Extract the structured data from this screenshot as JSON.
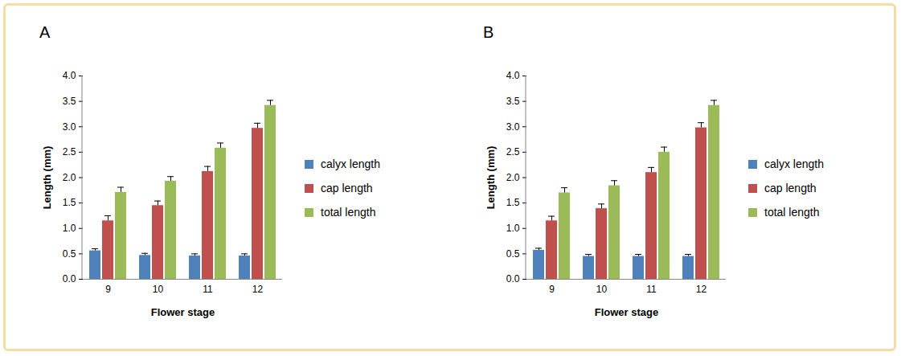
{
  "chart_data": [
    {
      "type": "bar",
      "title": "A",
      "x_label": "Flower stage",
      "y_label": "Length (mm)",
      "categories": [
        "9",
        "10",
        "11",
        "12"
      ],
      "series": [
        {
          "name": "calyx length",
          "color": "#4f81bd",
          "values": [
            0.56,
            0.47,
            0.46,
            0.46
          ],
          "errors": [
            0.04,
            0.04,
            0.04,
            0.04
          ]
        },
        {
          "name": "cap length",
          "color": "#c0504d",
          "values": [
            1.15,
            1.45,
            2.12,
            2.97
          ],
          "errors": [
            0.1,
            0.09,
            0.1,
            0.1
          ]
        },
        {
          "name": "total length",
          "color": "#9bbb59",
          "values": [
            1.71,
            1.93,
            2.58,
            3.42
          ],
          "errors": [
            0.1,
            0.09,
            0.1,
            0.1
          ]
        }
      ],
      "ylim": [
        0,
        4
      ],
      "yticks": [
        {
          "value": 0,
          "label": "0.0"
        },
        {
          "value": 0.5,
          "label": "0.5"
        },
        {
          "value": 1,
          "label": "1.0"
        },
        {
          "value": 1.5,
          "label": "1.5"
        },
        {
          "value": 2,
          "label": "2.0"
        },
        {
          "value": 2.5,
          "label": "2.5"
        },
        {
          "value": 3,
          "label": "3.0"
        },
        {
          "value": 3.5,
          "label": "3.5"
        },
        {
          "value": 4,
          "label": "4.0"
        }
      ],
      "grid": false,
      "legend": "right"
    },
    {
      "type": "bar",
      "title": "B",
      "x_label": "Flower stage",
      "y_label": "Length (mm)",
      "categories": [
        "9",
        "10",
        "11",
        "12"
      ],
      "series": [
        {
          "name": "calyx length",
          "color": "#4f81bd",
          "values": [
            0.57,
            0.45,
            0.45,
            0.45
          ],
          "errors": [
            0.04,
            0.04,
            0.04,
            0.04
          ]
        },
        {
          "name": "cap length",
          "color": "#c0504d",
          "values": [
            1.15,
            1.39,
            2.1,
            2.98
          ],
          "errors": [
            0.09,
            0.09,
            0.1,
            0.1
          ]
        },
        {
          "name": "total length",
          "color": "#9bbb59",
          "values": [
            1.7,
            1.84,
            2.5,
            3.42
          ],
          "errors": [
            0.1,
            0.1,
            0.1,
            0.1
          ]
        }
      ],
      "ylim": [
        0,
        4
      ],
      "yticks": [
        {
          "value": 0,
          "label": "0.0"
        },
        {
          "value": 0.5,
          "label": "0.5"
        },
        {
          "value": 1,
          "label": "1.0"
        },
        {
          "value": 1.5,
          "label": "1.5"
        },
        {
          "value": 2,
          "label": "2.0"
        },
        {
          "value": 2.5,
          "label": "2.5"
        },
        {
          "value": 3,
          "label": "3.0"
        },
        {
          "value": 3.5,
          "label": "3.5"
        },
        {
          "value": 4,
          "label": "4.0"
        }
      ],
      "grid": false,
      "legend": "right"
    }
  ]
}
